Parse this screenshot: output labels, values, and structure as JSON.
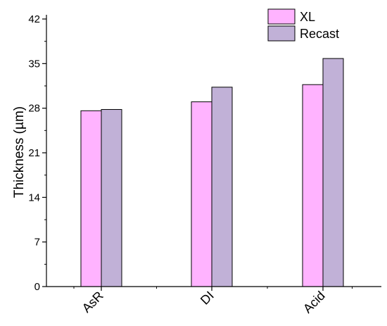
{
  "chart_data": {
    "type": "bar",
    "categories": [
      "AsR",
      "DI",
      "Acid"
    ],
    "series": [
      {
        "name": "XL",
        "values": [
          27.6,
          29.0,
          31.7
        ],
        "color": "#ffb3ff"
      },
      {
        "name": "Recast",
        "values": [
          27.8,
          31.3,
          35.8
        ],
        "color": "#c1b1d7"
      }
    ],
    "title": "",
    "xlabel": "",
    "ylabel": "Thickness (µm)",
    "ylim": [
      0,
      42
    ],
    "yticks": [
      "0",
      "7",
      "14",
      "21",
      "28",
      "35",
      "42"
    ],
    "grid": false,
    "legend_position": "top-right"
  }
}
